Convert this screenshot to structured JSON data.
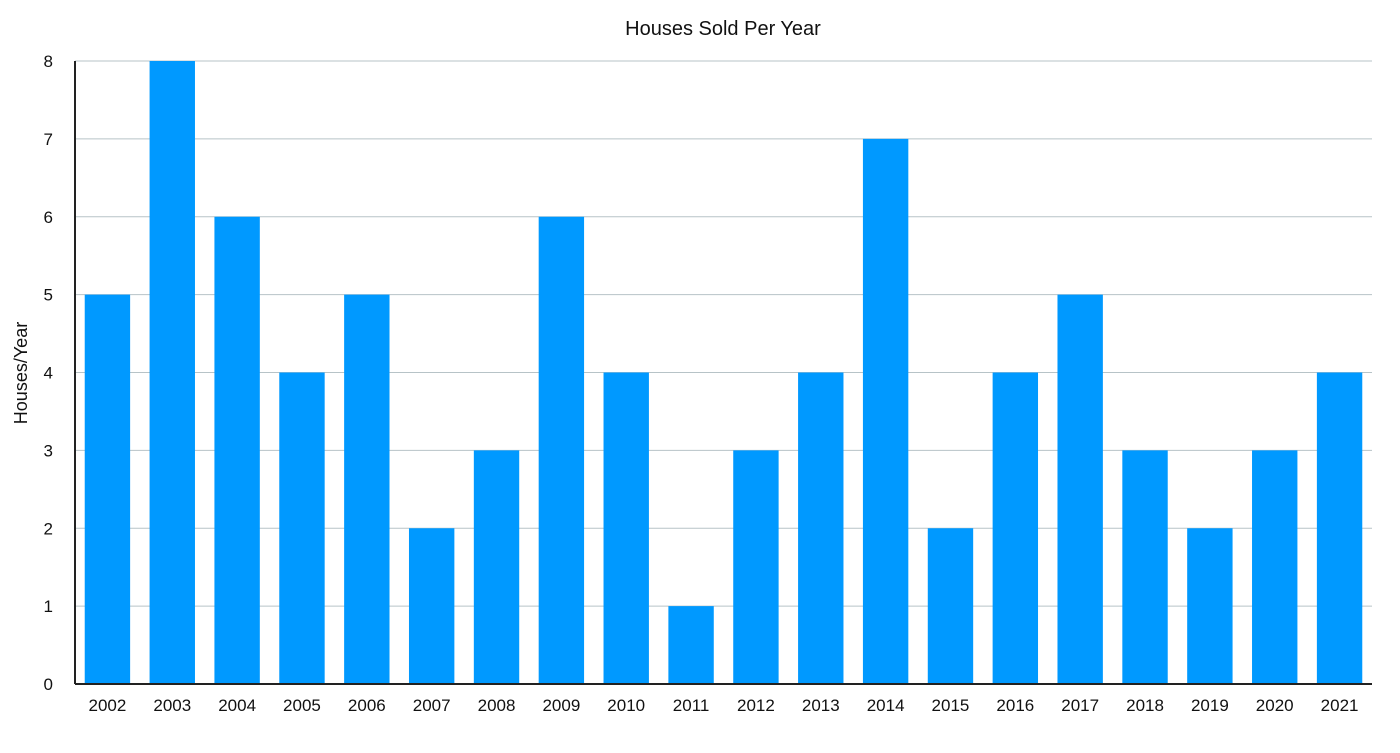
{
  "chart_data": {
    "type": "bar",
    "title": "Houses Sold Per Year",
    "xlabel": "",
    "ylabel": "Houses/Year",
    "categories": [
      "2002",
      "2003",
      "2004",
      "2005",
      "2006",
      "2007",
      "2008",
      "2009",
      "2010",
      "2011",
      "2012",
      "2013",
      "2014",
      "2015",
      "2016",
      "2017",
      "2018",
      "2019",
      "2020",
      "2021"
    ],
    "values": [
      5,
      8,
      6,
      4,
      5,
      2,
      3,
      6,
      4,
      1,
      3,
      4,
      7,
      2,
      4,
      5,
      3,
      2,
      3,
      4
    ],
    "ylim": [
      0,
      8
    ],
    "yticks": [
      0,
      1,
      2,
      3,
      4,
      5,
      6,
      7,
      8
    ],
    "grid": true,
    "legend": "none",
    "bar_color": "#0099FF",
    "grid_color": "#B7C3C7",
    "axis_color": "#222222"
  }
}
